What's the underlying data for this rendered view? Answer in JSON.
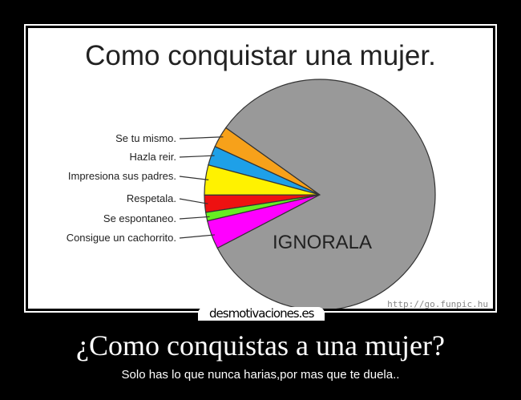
{
  "chart_data": {
    "type": "pie",
    "title": "Como conquistar una mujer.",
    "slices": [
      {
        "label": "Se tu mismo.",
        "value": 3.0,
        "color": "#f7a11a"
      },
      {
        "label": "Hazla reir.",
        "value": 2.7,
        "color": "#1ea0e8"
      },
      {
        "label": "Impresiona sus padres.",
        "value": 4.2,
        "color": "#fff200"
      },
      {
        "label": "Respetala.",
        "value": 2.4,
        "color": "#ee1111"
      },
      {
        "label": "Se espontaneo.",
        "value": 1.2,
        "color": "#66ee22"
      },
      {
        "label": "Consigue un cachorrito.",
        "value": 4.0,
        "color": "#ff00ff"
      },
      {
        "label": "IGNORALA",
        "value": 82.5,
        "color": "#999999"
      }
    ],
    "watermark": "http://go.funpic.hu"
  },
  "poster": {
    "brand": "desmotivaciones.es",
    "caption": "¿Como conquistas a una mujer?",
    "subtitle": "Solo has lo que nunca harias,por mas que te duela.."
  }
}
